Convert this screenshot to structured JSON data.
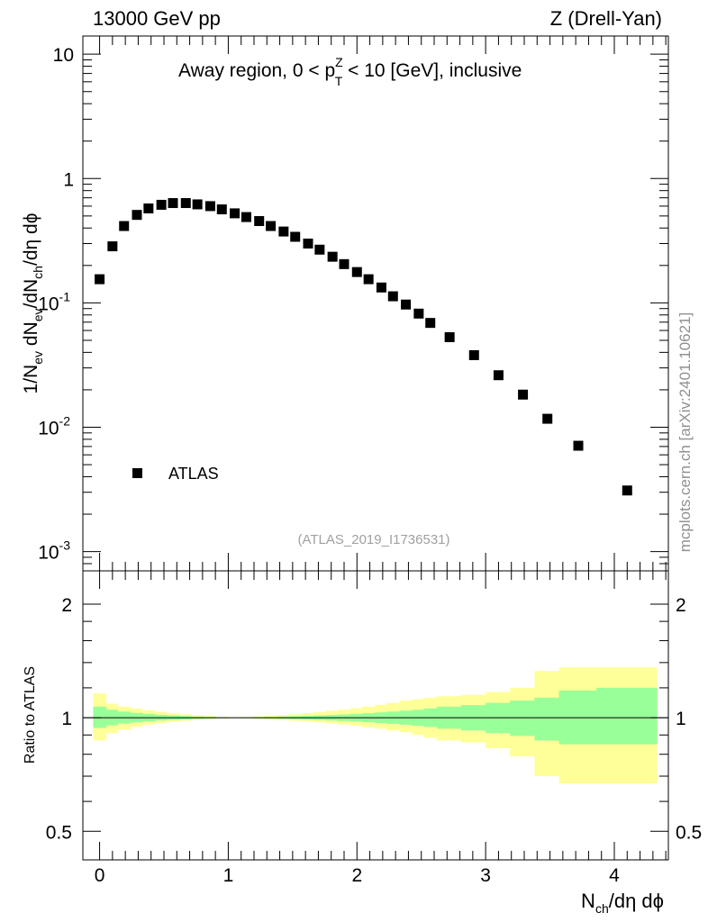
{
  "header": {
    "energy_label": "13000 GeV pp",
    "process_label": "Z (Drell-Yan)"
  },
  "watermark": {
    "side_text": "mcplots.cern.ch [arXiv:2401.10621]",
    "analysis_id": "(ATLAS_2019_I1736531)"
  },
  "chart_data": [
    {
      "type": "scatter",
      "panel": "main",
      "title": "Away region, 0 < pTZ < 10 [GeV], inclusive",
      "title_parts": {
        "prefix": "Away region, 0 < p",
        "sup": "Z",
        "sub": "T",
        "suffix": " < 10 [GeV], inclusive"
      },
      "ylabel": "1/Nev dNev/dNch/dη dϕ",
      "ylabel_parts": {
        "a": "1/N",
        "a_sub": "ev",
        "b": " dN",
        "b_sub": "ev",
        "c": "/dN",
        "c_sub": "ch",
        "d": "/dη dϕ"
      },
      "yscale": "log",
      "ylim": [
        0.0007,
        14
      ],
      "xlim": [
        -0.13,
        4.42
      ],
      "y_ticks": [
        {
          "base": "10",
          "exp": "-3",
          "value": 0.001
        },
        {
          "base": "10",
          "exp": "-2",
          "value": 0.01
        },
        {
          "base": "10",
          "exp": "-1",
          "value": 0.1
        },
        {
          "base": "1",
          "exp": "",
          "value": 1
        },
        {
          "base": "10",
          "exp": "",
          "value": 10
        }
      ],
      "legend": {
        "label": "ATLAS",
        "position": "lower-left"
      },
      "series": [
        {
          "name": "ATLAS",
          "marker": "square",
          "x": [
            0.0,
            0.1,
            0.19,
            0.29,
            0.38,
            0.48,
            0.57,
            0.67,
            0.76,
            0.86,
            0.95,
            1.05,
            1.14,
            1.24,
            1.33,
            1.43,
            1.52,
            1.62,
            1.71,
            1.81,
            1.9,
            2.0,
            2.09,
            2.19,
            2.28,
            2.38,
            2.48,
            2.57,
            2.72,
            2.91,
            3.1,
            3.29,
            3.48,
            3.72,
            4.1
          ],
          "y": [
            0.155,
            0.285,
            0.415,
            0.51,
            0.575,
            0.615,
            0.635,
            0.635,
            0.62,
            0.6,
            0.565,
            0.525,
            0.49,
            0.455,
            0.415,
            0.375,
            0.34,
            0.3,
            0.268,
            0.235,
            0.205,
            0.177,
            0.155,
            0.133,
            0.113,
            0.097,
            0.082,
            0.069,
            0.053,
            0.038,
            0.0262,
            0.0183,
            0.0117,
            0.0071,
            0.0031
          ]
        }
      ]
    },
    {
      "type": "area",
      "panel": "ratio",
      "ylabel": "Ratio to ATLAS",
      "xlabel": "Nch/dη dϕ",
      "xlabel_parts": {
        "a": "N",
        "a_sub": "ch",
        "b": "/dη dϕ"
      },
      "yscale": "log",
      "ylim": [
        0.42,
        2.45
      ],
      "xlim": [
        -0.13,
        4.42
      ],
      "x_ticks": [
        "0",
        "1",
        "2",
        "3",
        "4"
      ],
      "y_ticks": [
        {
          "label": "0.5",
          "value": 0.5
        },
        {
          "label": "1",
          "value": 1
        },
        {
          "label": "2",
          "value": 2
        }
      ],
      "reference_line": 1,
      "bins_x_edges": [
        -0.05,
        0.05,
        0.14,
        0.24,
        0.33,
        0.43,
        0.52,
        0.62,
        0.71,
        0.81,
        0.9,
        1.0,
        1.09,
        1.19,
        1.28,
        1.38,
        1.47,
        1.57,
        1.66,
        1.76,
        1.85,
        1.95,
        2.04,
        2.14,
        2.23,
        2.33,
        2.43,
        2.52,
        2.62,
        2.81,
        3.0,
        3.19,
        3.38,
        3.57,
        3.86,
        4.33
      ],
      "bands": [
        {
          "name": "stat",
          "color": "#99ff99",
          "lo": [
            0.94,
            0.955,
            0.965,
            0.972,
            0.978,
            0.983,
            0.987,
            0.99,
            0.993,
            0.995,
            0.997,
            0.998,
            0.997,
            0.996,
            0.995,
            0.993,
            0.991,
            0.989,
            0.986,
            0.983,
            0.98,
            0.977,
            0.973,
            0.968,
            0.963,
            0.958,
            0.952,
            0.945,
            0.935,
            0.925,
            0.91,
            0.895,
            0.87,
            0.85,
            0.85
          ],
          "hi": [
            1.07,
            1.05,
            1.038,
            1.03,
            1.024,
            1.018,
            1.014,
            1.01,
            1.007,
            1.005,
            1.003,
            1.002,
            1.003,
            1.004,
            1.005,
            1.007,
            1.009,
            1.011,
            1.014,
            1.017,
            1.02,
            1.024,
            1.028,
            1.033,
            1.038,
            1.044,
            1.05,
            1.058,
            1.07,
            1.08,
            1.095,
            1.11,
            1.13,
            1.18,
            1.2
          ]
        },
        {
          "name": "total",
          "color": "#ffff99",
          "lo": [
            0.87,
            0.91,
            0.93,
            0.945,
            0.958,
            0.968,
            0.976,
            0.982,
            0.988,
            0.992,
            0.996,
            0.998,
            0.996,
            0.993,
            0.99,
            0.986,
            0.982,
            0.977,
            0.972,
            0.966,
            0.959,
            0.952,
            0.944,
            0.935,
            0.925,
            0.915,
            0.9,
            0.885,
            0.87,
            0.86,
            0.83,
            0.79,
            0.7,
            0.67,
            0.67
          ],
          "hi": [
            1.16,
            1.09,
            1.07,
            1.058,
            1.047,
            1.037,
            1.029,
            1.022,
            1.016,
            1.011,
            1.006,
            1.002,
            1.004,
            1.008,
            1.012,
            1.017,
            1.022,
            1.028,
            1.035,
            1.043,
            1.051,
            1.06,
            1.07,
            1.082,
            1.095,
            1.11,
            1.12,
            1.13,
            1.14,
            1.15,
            1.17,
            1.2,
            1.33,
            1.36,
            1.36
          ]
        }
      ]
    }
  ]
}
